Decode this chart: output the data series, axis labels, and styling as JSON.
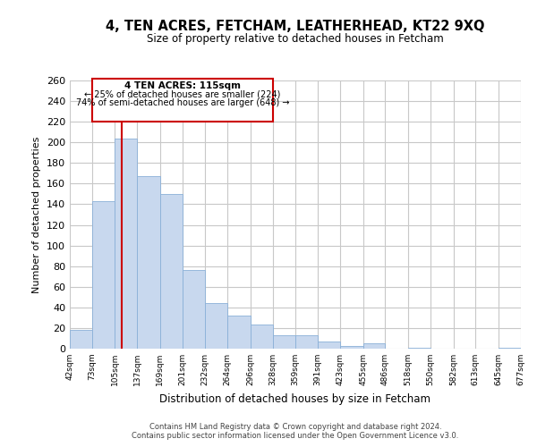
{
  "title": "4, TEN ACRES, FETCHAM, LEATHERHEAD, KT22 9XQ",
  "subtitle": "Size of property relative to detached houses in Fetcham",
  "xlabel": "Distribution of detached houses by size in Fetcham",
  "ylabel": "Number of detached properties",
  "bar_color": "#c8d8ee",
  "bar_edge_color": "#8ab0d8",
  "grid_color": "#c8c8c8",
  "background_color": "#ffffff",
  "marker_line_color": "#cc0000",
  "marker_value": 115,
  "bin_edges": [
    42,
    73,
    105,
    137,
    169,
    201,
    232,
    264,
    296,
    328,
    359,
    391,
    423,
    455,
    486,
    518,
    550,
    582,
    613,
    645,
    677
  ],
  "bin_labels": [
    "42sqm",
    "73sqm",
    "105sqm",
    "137sqm",
    "169sqm",
    "201sqm",
    "232sqm",
    "264sqm",
    "296sqm",
    "328sqm",
    "359sqm",
    "391sqm",
    "423sqm",
    "455sqm",
    "486sqm",
    "518sqm",
    "550sqm",
    "582sqm",
    "613sqm",
    "645sqm",
    "677sqm"
  ],
  "bar_heights": [
    18,
    143,
    204,
    167,
    150,
    76,
    44,
    32,
    23,
    13,
    13,
    7,
    3,
    5,
    0,
    1,
    0,
    0,
    0,
    1
  ],
  "ylim": [
    0,
    260
  ],
  "yticks": [
    0,
    20,
    40,
    60,
    80,
    100,
    120,
    140,
    160,
    180,
    200,
    220,
    240,
    260
  ],
  "annotation_title": "4 TEN ACRES: 115sqm",
  "annotation_line1": "← 25% of detached houses are smaller (224)",
  "annotation_line2": "74% of semi-detached houses are larger (648) →",
  "footer1": "Contains HM Land Registry data © Crown copyright and database right 2024.",
  "footer2": "Contains public sector information licensed under the Open Government Licence v3.0."
}
